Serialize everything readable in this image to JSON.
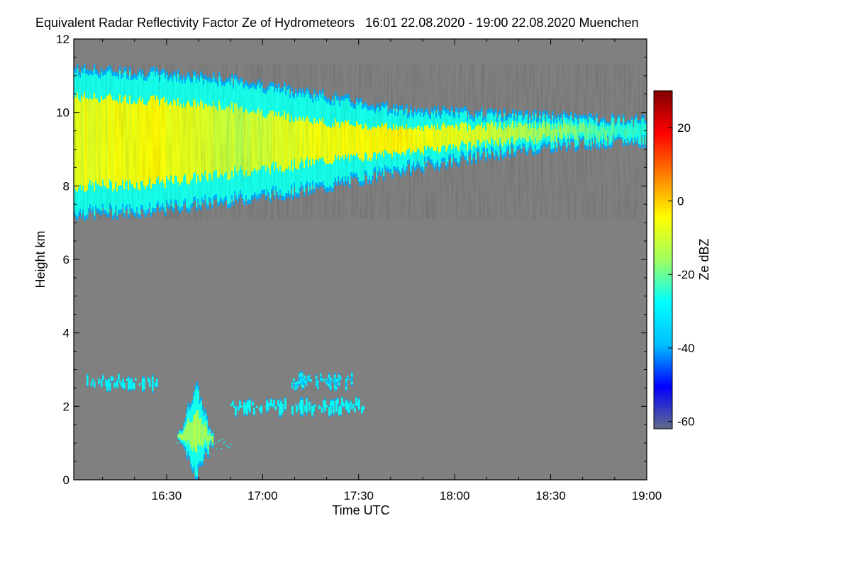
{
  "chart_data": {
    "type": "heatmap",
    "title": "Equivalent Radar Reflectivity Factor Ze of Hydrometeors   16:01 22.08.2020 - 19:00 22.08.2020 Muenchen",
    "xlabel": "Time UTC",
    "ylabel": "Height km",
    "colorbar_label": "Ze dBZ",
    "x_ticks": [
      "16:30",
      "17:00",
      "17:30",
      "18:00",
      "18:30",
      "19:00"
    ],
    "y_ticks": [
      "0",
      "2",
      "4",
      "6",
      "8",
      "10",
      "12"
    ],
    "colorbar_ticks": [
      "20",
      "0",
      "-20",
      "-40",
      "-60"
    ],
    "xlim": [
      "16:01",
      "19:00"
    ],
    "ylim": [
      0,
      12
    ],
    "zlim": [
      -62,
      30
    ],
    "background_color": "#808080",
    "colormap": [
      "#636b8a",
      "#0000ff",
      "#00c0ff",
      "#00ffff",
      "#a0ff60",
      "#ffff00",
      "#ff8000",
      "#ff0000",
      "#800000"
    ],
    "series": [
      {
        "name": "upper ice cloud layer",
        "time_start": "16:01",
        "time_end": "19:00",
        "base_km": [
          7.2,
          7.3,
          7.6,
          7.9,
          8.4,
          8.8,
          9.1,
          9.2
        ],
        "top_km": [
          11.2,
          11.1,
          10.9,
          10.5,
          10.1,
          10.0,
          9.9,
          9.8
        ],
        "typical_dBZ": [
          -8,
          -5,
          -12,
          -6,
          -4,
          -10,
          -18,
          -25
        ]
      },
      {
        "name": "low cloud 2.7 km",
        "time_start": "16:05",
        "time_end": "16:27",
        "height_km": 2.65,
        "typical_dBZ": -30
      },
      {
        "name": "low cloud 2.7 km",
        "time_start": "17:09",
        "time_end": "17:28",
        "height_km": 2.7,
        "typical_dBZ": -38
      },
      {
        "name": "convective cell",
        "time_start": "16:33",
        "time_end": "16:50",
        "base_km": 0.1,
        "top_km": 2.6,
        "typical_dBZ": -15
      },
      {
        "name": "low cloud 2 km",
        "time_start": "16:50",
        "time_end": "17:32",
        "height_km": 2.0,
        "typical_dBZ": -28
      }
    ]
  }
}
